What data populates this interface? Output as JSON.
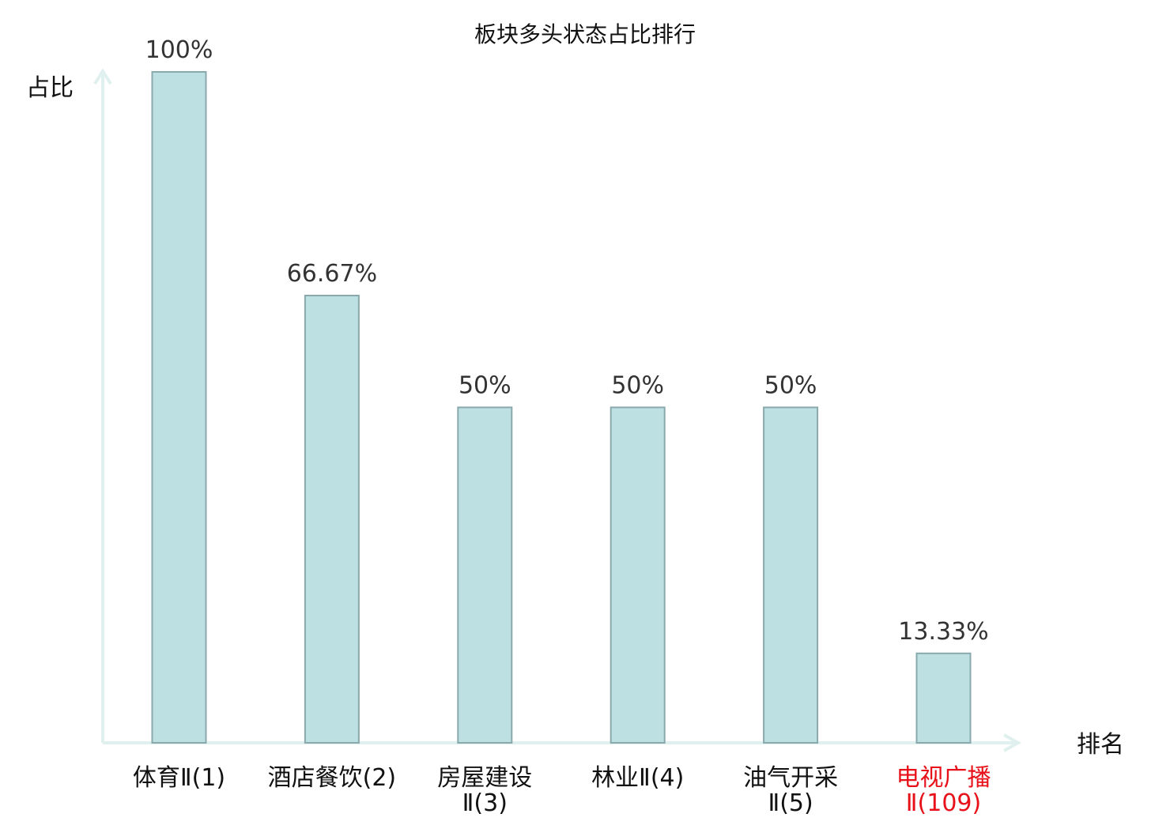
{
  "chart_data": {
    "type": "bar",
    "title": "板块多头状态占比排行",
    "ylabel": "占比",
    "xlabel": "排名",
    "ylim": [
      0,
      100
    ],
    "grid": false,
    "categories": [
      {
        "name": "体育Ⅱ",
        "rank": "(1)"
      },
      {
        "name": "酒店餐饮",
        "rank": "(2)"
      },
      {
        "name": "房屋建设Ⅱ",
        "rank": "(3)"
      },
      {
        "name": "林业Ⅱ",
        "rank": "(4)"
      },
      {
        "name": "油气开采Ⅱ",
        "rank": "(5)"
      },
      {
        "name": "电视广播Ⅱ",
        "rank": "(109)",
        "highlight": true
      }
    ],
    "values": [
      100,
      66.67,
      50,
      50,
      50,
      13.33
    ],
    "value_labels": [
      "100%",
      "66.67%",
      "50%",
      "50%",
      "50%",
      "13.33%"
    ]
  },
  "colors": {
    "bar_fill": "#bde0e2",
    "bar_stroke": "#8aa9ad",
    "axis": "#dff0ee",
    "text": "#111111",
    "value_text": "#333333",
    "highlight": "#e8111a"
  }
}
